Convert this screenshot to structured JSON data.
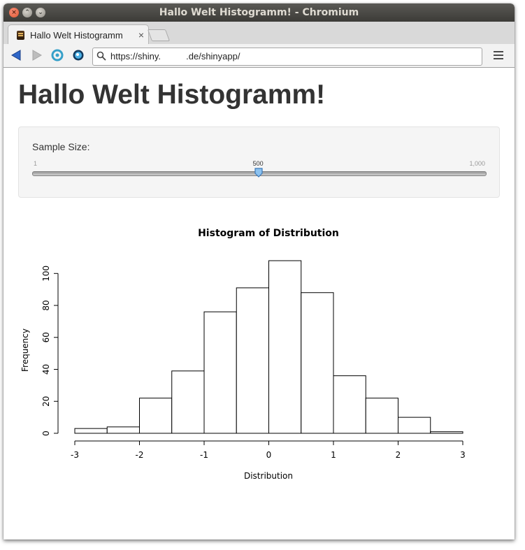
{
  "window": {
    "title": "Hallo Welt Histogramm! - Chromium"
  },
  "browser": {
    "tab_title": "Hallo Welt Histogramm",
    "tab_close": "×",
    "url": "https://shiny.          .de/shinyapp/"
  },
  "page": {
    "title": "Hallo Welt Histogramm!"
  },
  "controls": {
    "label": "Sample Size:",
    "min_label": "1",
    "max_label": "1,000",
    "value_label": "500",
    "min": 1,
    "max": 1000,
    "value": 500,
    "accent": "#4a90d9"
  },
  "chart_data": {
    "type": "bar",
    "title": "Histogram of Distribution",
    "xlabel": "Distribution",
    "ylabel": "Frequency",
    "bin_edges": [
      -3,
      -2.5,
      -2,
      -1.5,
      -1,
      -0.5,
      0,
      0.5,
      1,
      1.5,
      2,
      2.5,
      3
    ],
    "values": [
      3,
      4,
      22,
      39,
      76,
      91,
      108,
      88,
      36,
      22,
      10,
      1
    ],
    "xlim": [
      -3,
      3
    ],
    "ylim": [
      0,
      110
    ],
    "xticks": [
      -3,
      -2,
      -1,
      0,
      1,
      2,
      3
    ],
    "xtick_labels": [
      "-3",
      "-2",
      "-1",
      "0",
      "1",
      "2",
      "3"
    ],
    "yticks": [
      0,
      20,
      40,
      60,
      80,
      100
    ],
    "ytick_labels": [
      "0",
      "20",
      "40",
      "60",
      "80",
      "100"
    ],
    "grid": false
  }
}
